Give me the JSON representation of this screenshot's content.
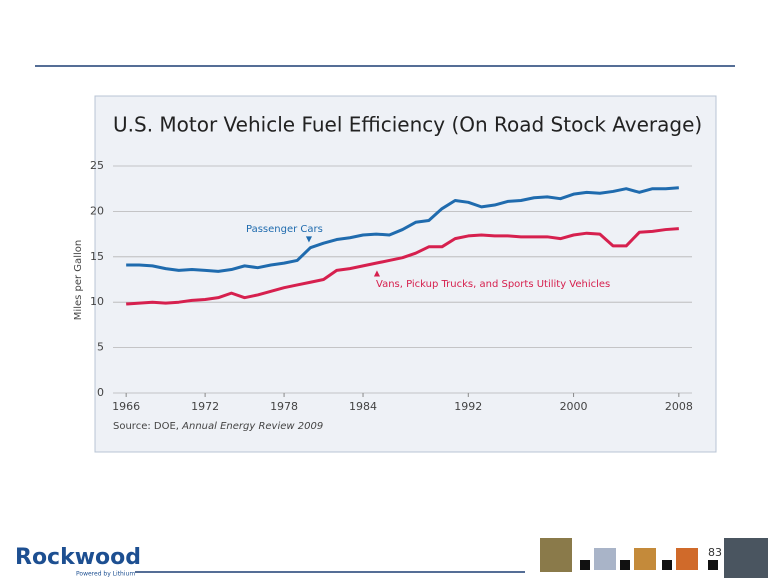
{
  "chart_data": {
    "type": "line",
    "title": "U.S. Motor Vehicle Fuel Efficiency (On Road Stock Average)",
    "y_label": "Miles per Gallon",
    "source": "Source: DOE,",
    "source_title": "Annual Energy Review 2009",
    "x": [
      1966,
      1967,
      1968,
      1969,
      1970,
      1971,
      1972,
      1973,
      1974,
      1975,
      1976,
      1977,
      1978,
      1979,
      1980,
      1981,
      1982,
      1983,
      1984,
      1985,
      1986,
      1987,
      1988,
      1989,
      1990,
      1991,
      1992,
      1993,
      1994,
      1995,
      1996,
      1997,
      1998,
      1999,
      2000,
      2001,
      2002,
      2003,
      2004,
      2005,
      2006,
      2007,
      2008
    ],
    "series": [
      {
        "name": "Passenger Cars",
        "color": "#1f6bae",
        "values": [
          14.1,
          14.1,
          14.0,
          13.7,
          13.5,
          13.6,
          13.5,
          13.4,
          13.6,
          14.0,
          13.8,
          14.1,
          14.3,
          14.6,
          16.0,
          16.5,
          16.9,
          17.1,
          17.4,
          17.5,
          17.4,
          18.0,
          18.8,
          19.0,
          20.3,
          21.2,
          21.0,
          20.5,
          20.7,
          21.1,
          21.2,
          21.5,
          21.6,
          21.4,
          21.9,
          22.1,
          22.0,
          22.2,
          22.5,
          22.1,
          22.5,
          22.5,
          22.6
        ]
      },
      {
        "name": "Vans, Pickup Trucks, and Sports Utility Vehicles",
        "color": "#d6204e",
        "values": [
          9.8,
          9.9,
          10.0,
          9.9,
          10.0,
          10.2,
          10.3,
          10.5,
          11.0,
          10.5,
          10.8,
          11.2,
          11.6,
          11.9,
          12.2,
          12.5,
          13.5,
          13.7,
          14.0,
          14.3,
          14.6,
          14.9,
          15.4,
          16.1,
          16.1,
          17.0,
          17.3,
          17.4,
          17.3,
          17.3,
          17.2,
          17.2,
          17.2,
          17.0,
          17.4,
          17.6,
          17.5,
          16.2,
          16.2,
          17.7,
          17.8,
          18.0,
          18.1
        ]
      }
    ],
    "xlim": [
      1965,
      2009
    ],
    "xticks": [
      1966,
      1972,
      1978,
      1984,
      1992,
      2000,
      2008
    ],
    "ylim": [
      0,
      25
    ],
    "yticks": [
      0,
      5,
      10,
      15,
      20,
      25
    ],
    "grid": true
  },
  "slide": {
    "logo": "Rockwood",
    "tagline": "Powered by Lithium",
    "page_number": "83"
  }
}
